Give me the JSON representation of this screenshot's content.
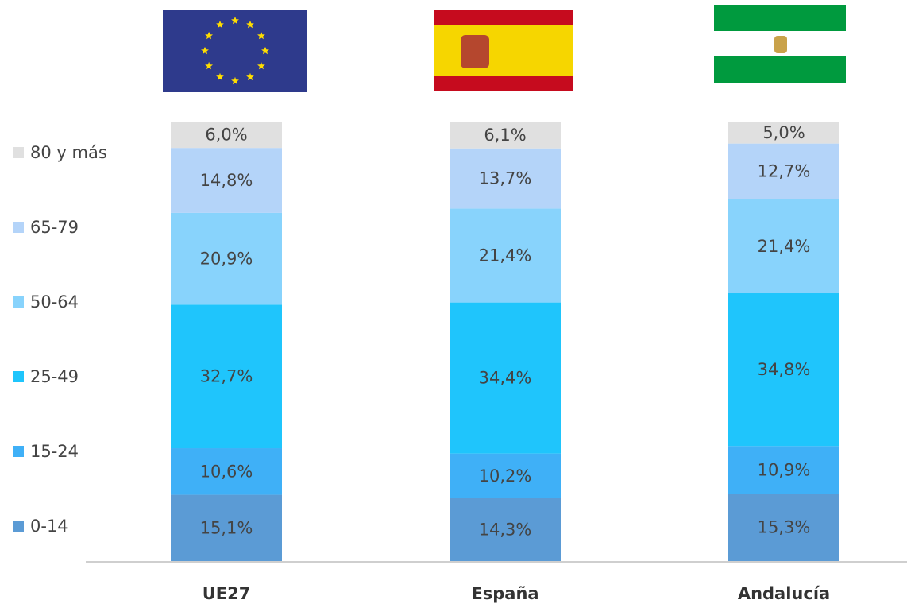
{
  "chart_data": {
    "type": "stacked_bar",
    "categories": [
      "UE27",
      "España",
      "Andalucía"
    ],
    "series": [
      {
        "name": "0-14",
        "color": "#5b9bd5",
        "values": [
          15.1,
          14.3,
          15.3
        ],
        "value_labels": [
          "15,1%",
          "14,3%",
          "15,3%"
        ]
      },
      {
        "name": "15-24",
        "color": "#3fb0f7",
        "values": [
          10.6,
          10.2,
          10.9
        ],
        "value_labels": [
          "10,6%",
          "10,2%",
          "10,9%"
        ]
      },
      {
        "name": "25-49",
        "color": "#1fc5fc",
        "values": [
          32.7,
          34.4,
          34.8
        ],
        "value_labels": [
          "32,7%",
          "34,4%",
          "34,8%"
        ]
      },
      {
        "name": "50-64",
        "color": "#88d3fc",
        "values": [
          20.9,
          21.4,
          21.4
        ],
        "value_labels": [
          "20,9%",
          "21,4%",
          "21,4%"
        ]
      },
      {
        "name": "65-79",
        "color": "#b4d4f9",
        "values": [
          14.8,
          13.7,
          12.7
        ],
        "value_labels": [
          "14,8%",
          "13,7%",
          "12,7%"
        ]
      },
      {
        "name": "80 y más",
        "color": "#e0e0e0",
        "values": [
          6.0,
          6.1,
          5.0
        ],
        "value_labels": [
          "6,0%",
          "6,1%",
          "5,0%"
        ]
      }
    ],
    "legend": "left"
  }
}
